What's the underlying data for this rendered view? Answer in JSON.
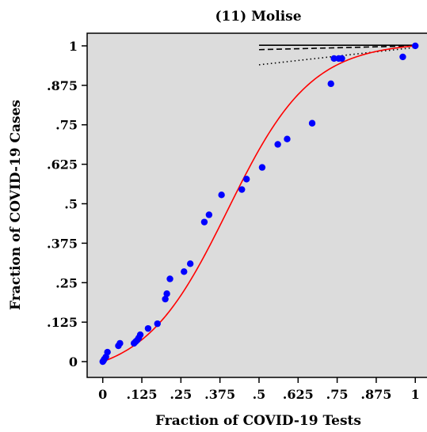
{
  "chart_data": {
    "type": "scatter",
    "title": "(11) Molise",
    "xlabel": "Fraction of COVID-19 Tests",
    "ylabel": "Fraction of COVID-19 Cases",
    "xlim": [
      -0.05,
      1.04
    ],
    "ylim": [
      -0.05,
      1.04
    ],
    "xticks": [
      0,
      0.125,
      0.25,
      0.375,
      0.5,
      0.625,
      0.75,
      0.875,
      1
    ],
    "xtick_labels": [
      "0",
      ".125",
      ".25",
      ".375",
      ".5",
      ".625",
      ".75",
      ".875",
      "1"
    ],
    "yticks": [
      0,
      0.125,
      0.25,
      0.375,
      0.5,
      0.625,
      0.75,
      0.875,
      1
    ],
    "ytick_labels": [
      "0",
      ".125",
      ".25",
      ".375",
      ".5",
      ".625",
      ".75",
      ".875",
      "1"
    ],
    "grid": false,
    "background": "#dcdcdc",
    "points": {
      "color": "#0000ff",
      "x": [
        0.0,
        0.002,
        0.005,
        0.01,
        0.015,
        0.05,
        0.055,
        0.1,
        0.105,
        0.11,
        0.115,
        0.12,
        0.145,
        0.175,
        0.2,
        0.205,
        0.215,
        0.26,
        0.28,
        0.325,
        0.34,
        0.38,
        0.445,
        0.46,
        0.51,
        0.56,
        0.59,
        0.67,
        0.73,
        0.74,
        0.755,
        0.765,
        0.96,
        1.0
      ],
      "y": [
        0.0,
        0.003,
        0.008,
        0.015,
        0.03,
        0.05,
        0.058,
        0.058,
        0.063,
        0.068,
        0.075,
        0.085,
        0.105,
        0.12,
        0.198,
        0.215,
        0.262,
        0.285,
        0.31,
        0.442,
        0.465,
        0.528,
        0.545,
        0.578,
        0.615,
        0.688,
        0.705,
        0.755,
        0.88,
        0.96,
        0.96,
        0.96,
        0.965,
        1.0
      ]
    },
    "fitted_curve": {
      "color": "#ff0000",
      "shape": "logistic",
      "k": 7.5,
      "x0": 0.4
    },
    "reference_lines": [
      {
        "style": "solid",
        "x": [
          0.5,
          1.0
        ],
        "y": [
          1.002,
          1.002
        ]
      },
      {
        "style": "dashed",
        "x": [
          0.5,
          1.0
        ],
        "y": [
          0.988,
          1.0
        ]
      },
      {
        "style": "dotted",
        "x": [
          0.5,
          1.0
        ],
        "y": [
          0.94,
          0.995
        ]
      }
    ]
  }
}
